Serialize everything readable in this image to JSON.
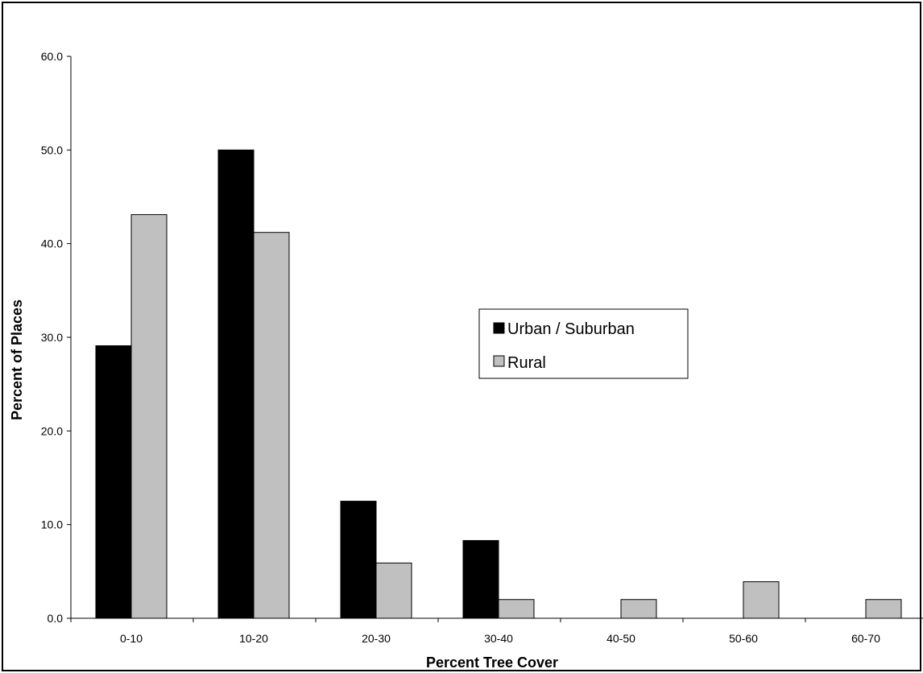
{
  "chart_data": {
    "type": "bar",
    "categories": [
      "0-10",
      "10-20",
      "20-30",
      "30-40",
      "40-50",
      "50-60",
      "60-70"
    ],
    "series": [
      {
        "name": "Urban / Suburban",
        "color": "#000000",
        "values": [
          29.1,
          50.0,
          12.5,
          8.3,
          0,
          0,
          0
        ]
      },
      {
        "name": "Rural",
        "color": "#c0c0c0",
        "values": [
          43.1,
          41.2,
          5.9,
          2.0,
          2.0,
          3.9,
          2.0
        ]
      }
    ],
    "title": "",
    "xlabel": "Percent Tree Cover",
    "ylabel": "Percent of Places",
    "ylim": [
      0,
      60
    ],
    "yticks": [
      "0.0",
      "10.0",
      "20.0",
      "30.0",
      "40.0",
      "50.0",
      "60.0"
    ],
    "grid": false,
    "legend_position": "right-center"
  }
}
